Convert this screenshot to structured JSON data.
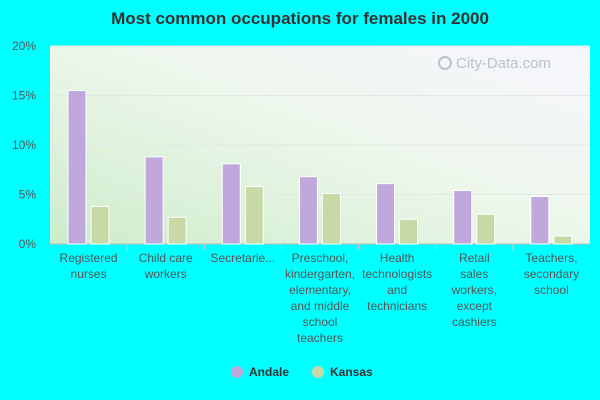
{
  "chart_data": {
    "type": "bar",
    "title": "Most common occupations for females in 2000",
    "categories": [
      [
        "Registered",
        "nurses"
      ],
      [
        "Child care",
        "workers"
      ],
      [
        "Secretarie..."
      ],
      [
        "Preschool,",
        "kindergarten,",
        "elementary,",
        "and middle",
        "school",
        "teachers"
      ],
      [
        "Health",
        "technologists",
        "and",
        "technicians"
      ],
      [
        "Retail",
        "sales",
        "workers,",
        "except",
        "cashiers"
      ],
      [
        "Teachers,",
        "secondary",
        "school"
      ]
    ],
    "series": [
      {
        "name": "Andale",
        "color": "#c0a8dc",
        "values": [
          15.5,
          8.8,
          8.1,
          6.8,
          6.1,
          5.4,
          4.8
        ]
      },
      {
        "name": "Kansas",
        "color": "#c6d9a6",
        "values": [
          3.8,
          2.7,
          5.8,
          5.1,
          2.5,
          3.0,
          0.8
        ]
      }
    ],
    "yticks": [
      "0%",
      "5%",
      "10%",
      "15%",
      "20%"
    ],
    "ylim": [
      0,
      20
    ],
    "legend_position": "bottom-center",
    "grid": true
  },
  "watermark": "City-Data.com"
}
